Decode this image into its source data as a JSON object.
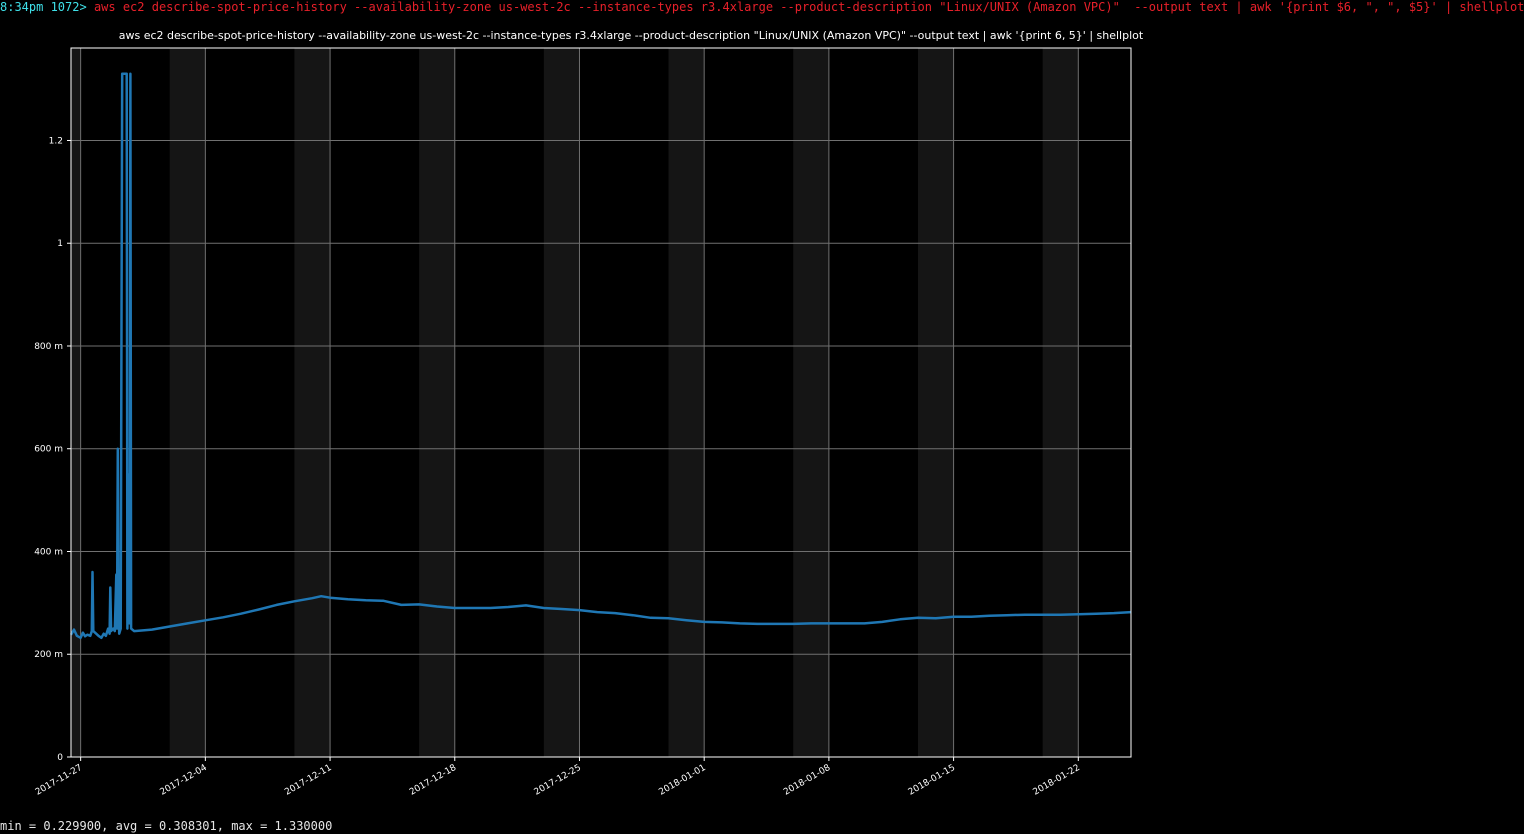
{
  "terminal": {
    "prompt": "8:34pm 1072>",
    "command": "aws ec2 describe-spot-price-history --availability-zone us-west-2c --instance-types r3.4xlarge --product-description \"Linux/UNIX (Amazon VPC)\"  --output text | awk '{print $6, \", \", $5}' | shellplot",
    "stats": "min = 0.229900, avg = 0.308301, max = 1.330000"
  },
  "colors": {
    "background": "#000000",
    "plot_background": "#000000",
    "weekend_band": "#151515",
    "grid": "#707070",
    "line": "#1f77b4",
    "prompt_time": "#3fe0e8",
    "prompt_command": "#e8202a",
    "text": "#ffffff"
  },
  "chart_data": {
    "type": "line",
    "title": "aws ec2 describe-spot-price-history --availability-zone us-west-2c --instance-types r3.4xlarge --product-description \"Linux/UNIX (Amazon VPC)\"  --output text | awk '{print 6, 5}' | shellplot",
    "xlabel": "",
    "ylabel": "",
    "grid": true,
    "legend": "none",
    "x_range": [
      "2017-11-26T11:00",
      "2018-01-24T23:00"
    ],
    "ylim": [
      0,
      1.38
    ],
    "y_ticks": [
      {
        "value": 0,
        "label": "0"
      },
      {
        "value": 0.2,
        "label": "200 m"
      },
      {
        "value": 0.4,
        "label": "400 m"
      },
      {
        "value": 0.6,
        "label": "600 m"
      },
      {
        "value": 0.8,
        "label": "800 m"
      },
      {
        "value": 1.0,
        "label": "1"
      },
      {
        "value": 1.2,
        "label": "1.2"
      }
    ],
    "x_ticks": [
      {
        "value": "2017-11-27",
        "label": "2017-11-27"
      },
      {
        "value": "2017-12-04",
        "label": "2017-12-04"
      },
      {
        "value": "2017-12-11",
        "label": "2017-12-11"
      },
      {
        "value": "2017-12-18",
        "label": "2017-12-18"
      },
      {
        "value": "2017-12-25",
        "label": "2017-12-25"
      },
      {
        "value": "2018-01-01",
        "label": "2018-01-01"
      },
      {
        "value": "2018-01-08",
        "label": "2018-01-08"
      },
      {
        "value": "2018-01-15",
        "label": "2018-01-15"
      },
      {
        "value": "2018-01-22",
        "label": "2018-01-22"
      }
    ],
    "weekend_bands": [
      [
        "2017-11-25",
        "2017-11-27"
      ],
      [
        "2017-12-02",
        "2017-12-04"
      ],
      [
        "2017-12-09",
        "2017-12-11"
      ],
      [
        "2017-12-16",
        "2017-12-18"
      ],
      [
        "2017-12-23",
        "2017-12-25"
      ],
      [
        "2017-12-30",
        "2018-01-01"
      ],
      [
        "2018-01-06",
        "2018-01-08"
      ],
      [
        "2018-01-13",
        "2018-01-15"
      ],
      [
        "2018-01-20",
        "2018-01-22"
      ]
    ],
    "series": [
      {
        "points": [
          [
            "2017-11-26T11:00",
            0.238
          ],
          [
            "2017-11-26T15:00",
            0.248
          ],
          [
            "2017-11-26T19:00",
            0.236
          ],
          [
            "2017-11-27T00:00",
            0.232
          ],
          [
            "2017-11-27T03:00",
            0.242
          ],
          [
            "2017-11-27T06:00",
            0.235
          ],
          [
            "2017-11-27T09:00",
            0.238
          ],
          [
            "2017-11-27T13:00",
            0.236
          ],
          [
            "2017-11-27T15:00",
            0.245
          ],
          [
            "2017-11-27T16:00",
            0.36
          ],
          [
            "2017-11-27T17:00",
            0.245
          ],
          [
            "2017-11-27T21:00",
            0.24
          ],
          [
            "2017-11-28T00:00",
            0.236
          ],
          [
            "2017-11-28T04:00",
            0.232
          ],
          [
            "2017-11-28T07:00",
            0.24
          ],
          [
            "2017-11-28T10:00",
            0.236
          ],
          [
            "2017-11-28T13:00",
            0.25
          ],
          [
            "2017-11-28T15:00",
            0.24
          ],
          [
            "2017-11-28T16:00",
            0.33
          ],
          [
            "2017-11-28T17:00",
            0.245
          ],
          [
            "2017-11-28T20:00",
            0.25
          ],
          [
            "2017-11-28T22:00",
            0.245
          ],
          [
            "2017-11-29T00:00",
            0.355
          ],
          [
            "2017-11-29T01:00",
            0.25
          ],
          [
            "2017-11-29T02:00",
            0.6
          ],
          [
            "2017-11-29T03:00",
            0.3
          ],
          [
            "2017-11-29T04:00",
            0.24
          ],
          [
            "2017-11-29T06:00",
            0.25
          ],
          [
            "2017-11-29T07:00",
            0.85
          ],
          [
            "2017-11-29T08:00",
            1.33
          ],
          [
            "2017-11-29T14:00",
            1.33
          ],
          [
            "2017-11-29T15:00",
            0.25
          ],
          [
            "2017-11-29T17:00",
            0.55
          ],
          [
            "2017-11-29T18:00",
            0.26
          ],
          [
            "2017-11-29T19:00",
            1.33
          ],
          [
            "2017-11-29T20:00",
            0.25
          ],
          [
            "2017-11-30T00:00",
            0.245
          ],
          [
            "2017-12-01T00:00",
            0.248
          ],
          [
            "2017-12-02T00:00",
            0.254
          ],
          [
            "2017-12-03T00:00",
            0.26
          ],
          [
            "2017-12-04T00:00",
            0.266
          ],
          [
            "2017-12-05T00:00",
            0.272
          ],
          [
            "2017-12-06T00:00",
            0.279
          ],
          [
            "2017-12-07T00:00",
            0.287
          ],
          [
            "2017-12-08T00:00",
            0.296
          ],
          [
            "2017-12-09T00:00",
            0.303
          ],
          [
            "2017-12-10T00:00",
            0.309
          ],
          [
            "2017-12-10T12:00",
            0.313
          ],
          [
            "2017-12-11T00:00",
            0.31
          ],
          [
            "2017-12-12T00:00",
            0.307
          ],
          [
            "2017-12-13T00:00",
            0.305
          ],
          [
            "2017-12-14T00:00",
            0.304
          ],
          [
            "2017-12-15T00:00",
            0.296
          ],
          [
            "2017-12-16T00:00",
            0.297
          ],
          [
            "2017-12-17T00:00",
            0.293
          ],
          [
            "2017-12-18T00:00",
            0.29
          ],
          [
            "2017-12-19T00:00",
            0.29
          ],
          [
            "2017-12-20T00:00",
            0.29
          ],
          [
            "2017-12-21T00:00",
            0.292
          ],
          [
            "2017-12-22T00:00",
            0.295
          ],
          [
            "2017-12-23T00:00",
            0.29
          ],
          [
            "2017-12-24T00:00",
            0.288
          ],
          [
            "2017-12-25T00:00",
            0.286
          ],
          [
            "2017-12-26T00:00",
            0.282
          ],
          [
            "2017-12-27T00:00",
            0.28
          ],
          [
            "2017-12-28T00:00",
            0.276
          ],
          [
            "2017-12-29T00:00",
            0.271
          ],
          [
            "2017-12-30T00:00",
            0.27
          ],
          [
            "2017-12-31T00:00",
            0.266
          ],
          [
            "2018-01-01T00:00",
            0.263
          ],
          [
            "2018-01-02T00:00",
            0.262
          ],
          [
            "2018-01-03T00:00",
            0.26
          ],
          [
            "2018-01-04T00:00",
            0.259
          ],
          [
            "2018-01-05T00:00",
            0.259
          ],
          [
            "2018-01-06T00:00",
            0.259
          ],
          [
            "2018-01-07T00:00",
            0.26
          ],
          [
            "2018-01-08T00:00",
            0.26
          ],
          [
            "2018-01-09T00:00",
            0.26
          ],
          [
            "2018-01-10T00:00",
            0.26
          ],
          [
            "2018-01-11T00:00",
            0.263
          ],
          [
            "2018-01-12T00:00",
            0.268
          ],
          [
            "2018-01-13T00:00",
            0.271
          ],
          [
            "2018-01-14T00:00",
            0.27
          ],
          [
            "2018-01-15T00:00",
            0.273
          ],
          [
            "2018-01-16T00:00",
            0.273
          ],
          [
            "2018-01-17T00:00",
            0.275
          ],
          [
            "2018-01-18T00:00",
            0.276
          ],
          [
            "2018-01-19T00:00",
            0.277
          ],
          [
            "2018-01-20T00:00",
            0.277
          ],
          [
            "2018-01-21T00:00",
            0.277
          ],
          [
            "2018-01-22T00:00",
            0.278
          ],
          [
            "2018-01-23T00:00",
            0.279
          ],
          [
            "2018-01-24T00:00",
            0.28
          ],
          [
            "2018-01-24T23:00",
            0.282
          ]
        ]
      }
    ]
  }
}
